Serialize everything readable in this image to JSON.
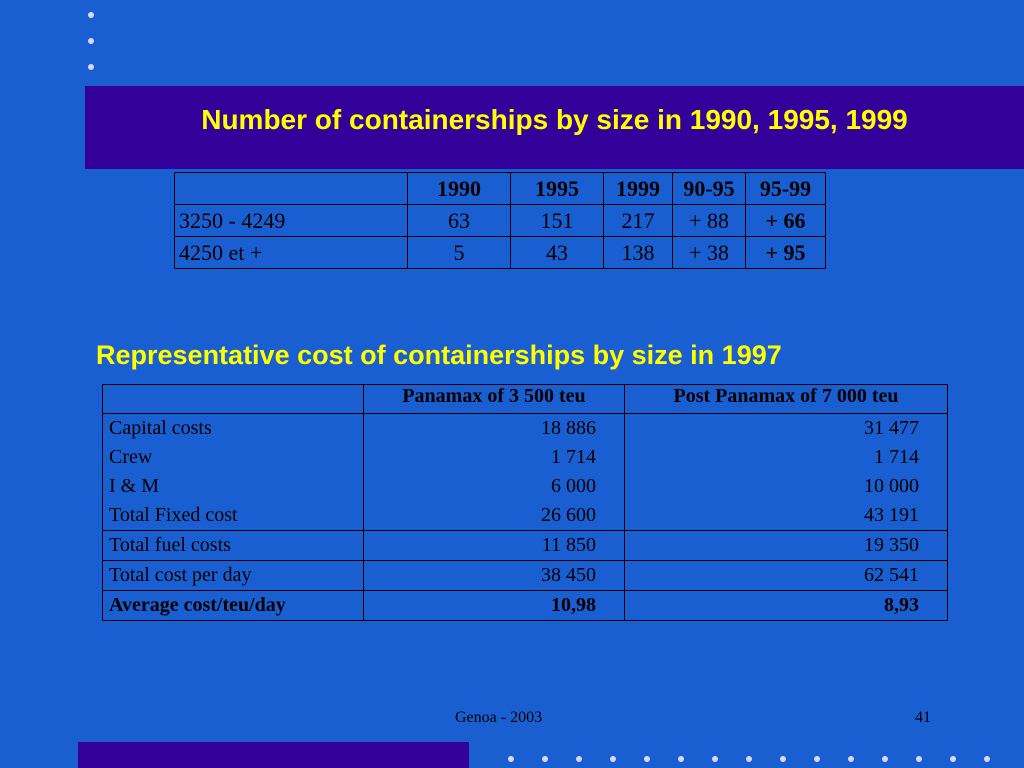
{
  "title": "Number of containerships by size  in 1990, 1995, 1999",
  "table1": {
    "headers": [
      "",
      "1990",
      "1995",
      "1999",
      "90-95",
      "95-99"
    ],
    "rows": [
      [
        "3250 - 4249",
        "63",
        "151",
        "217",
        "+ 88",
        "+ 66"
      ],
      [
        "4250 et +",
        "5",
        "43",
        "138",
        "+ 38",
        "+ 95"
      ]
    ]
  },
  "subtitle": "Representative cost of containerships by size  in 1997",
  "table2": {
    "headers": [
      "",
      "Panamax of 3 500 teu",
      "Post Panamax of 7 000 teu"
    ],
    "group_labels": [
      "Capital costs",
      "Crew",
      "I & M",
      "Total Fixed cost"
    ],
    "group_panamax": [
      "18 886",
      "1 714",
      "6 000",
      "26 600"
    ],
    "group_post": [
      "31 477",
      "1 714",
      "10 000",
      "43 191"
    ],
    "fuel": [
      "Total fuel costs",
      "11 850",
      "19 350"
    ],
    "total": [
      "Total cost per day",
      "38 450",
      "62 541"
    ],
    "average": [
      "Average cost/teu/day",
      "10,98",
      "8,93"
    ]
  },
  "footer": {
    "center": "Genoa - 2003",
    "page": "41"
  },
  "colors": {
    "background": "#1a5fd1",
    "title_bar": "#330099",
    "title_text": "#ffff00"
  }
}
